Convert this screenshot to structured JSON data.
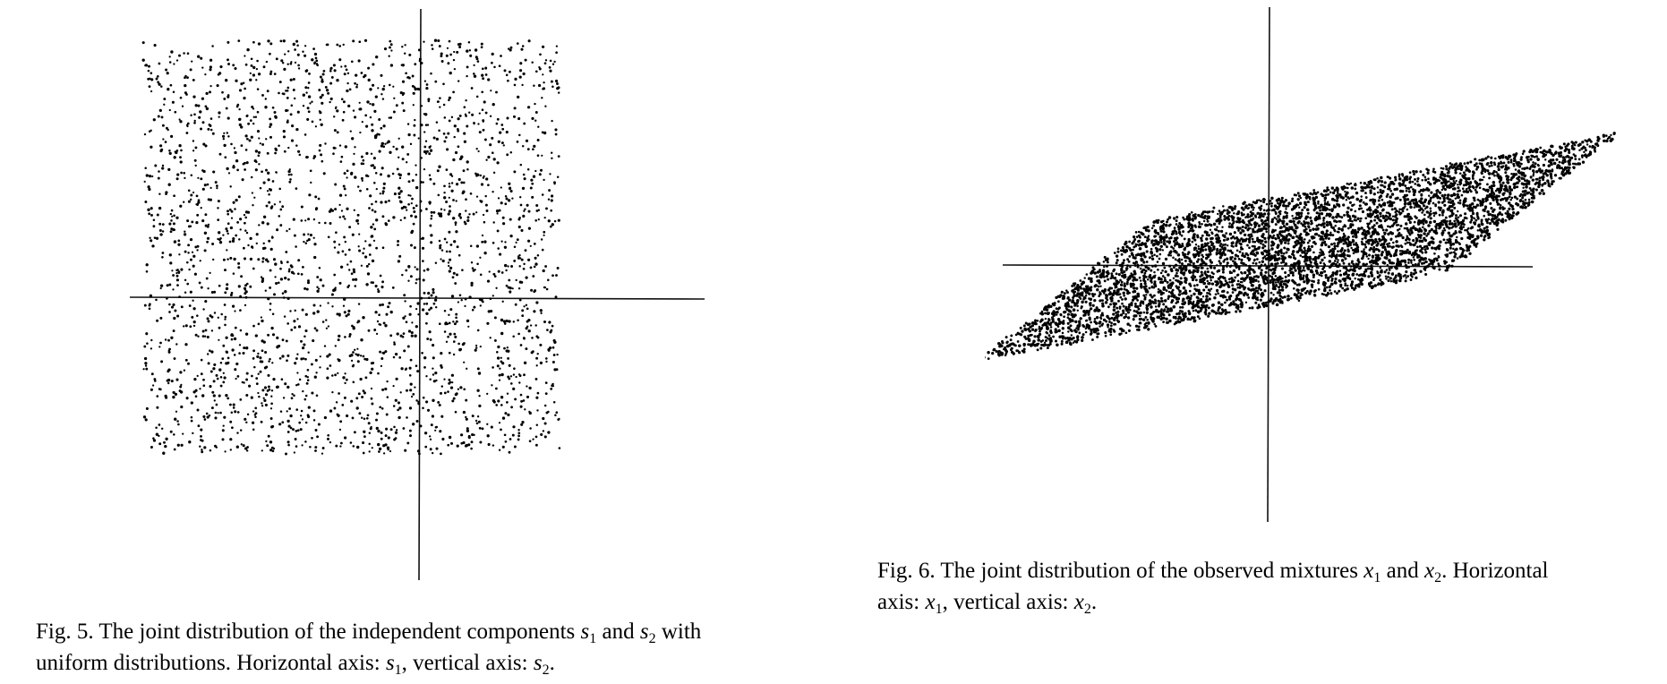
{
  "figures": [
    {
      "id": "fig5",
      "caption": {
        "label": "Fig. 5.",
        "line1_pre": " The joint distribution of the independent components ",
        "var_a": "s",
        "sub_a": "1",
        "mid": " and ",
        "var_b": "s",
        "sub_b": "2",
        "line1_post": " with",
        "line2_pre": "uniform distributions. Horizontal axis: ",
        "var_c": "s",
        "sub_c": "1",
        "line2_mid": ", vertical axis: ",
        "var_d": "s",
        "sub_d": "2",
        "line2_post": "."
      },
      "chart_data": {
        "type": "scatter",
        "distribution": "uniform",
        "x_range": [
          -1,
          1
        ],
        "y_range": [
          -1,
          1
        ],
        "grid": false,
        "axes_through_origin": true,
        "marker_color": "#000000"
      }
    },
    {
      "id": "fig6",
      "caption": {
        "label": "Fig. 6.",
        "line1_pre": " The joint distribution of the observed mixtures ",
        "var_a": "x",
        "sub_a": "1",
        "mid": " and ",
        "var_b": "x",
        "sub_b": "2",
        "line1_post": ". Horizontal",
        "line2_pre": "axis: ",
        "var_c": "x",
        "sub_c": "1",
        "line2_mid": ", vertical axis: ",
        "var_d": "x",
        "sub_d": "2",
        "line2_post": "."
      },
      "chart_data": {
        "type": "scatter",
        "distribution": "linear mixture of uniform sources (parallelogram)",
        "grid": false,
        "axes_through_origin": true,
        "marker_color": "#000000"
      }
    }
  ]
}
